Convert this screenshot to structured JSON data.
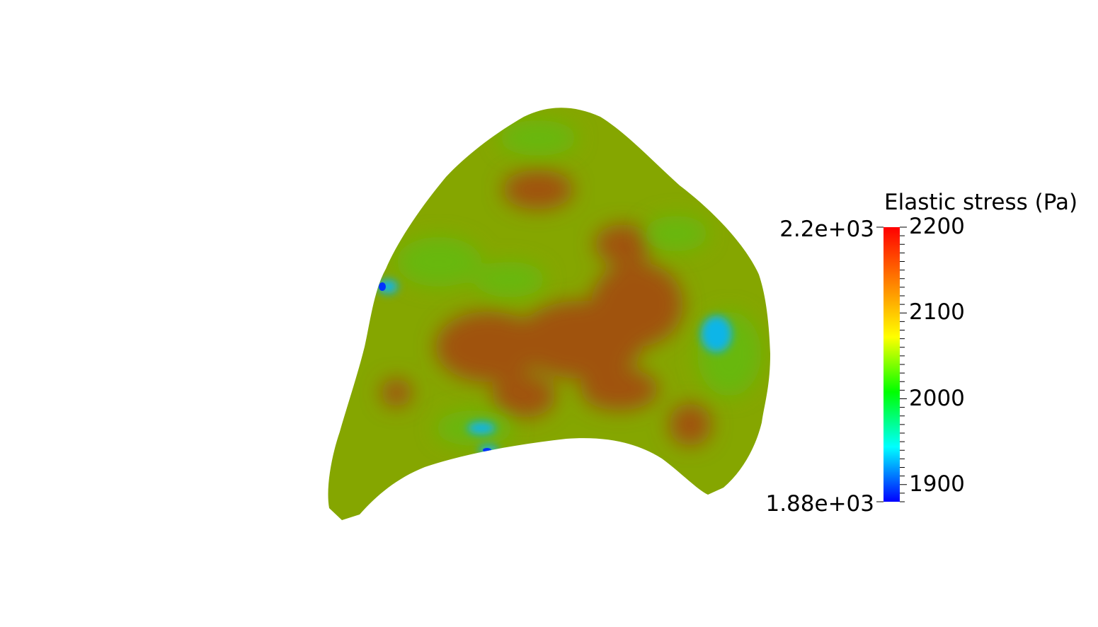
{
  "scalar_bar": {
    "title": "Elastic stress (Pa)",
    "range_max_label": "2.2e+03",
    "range_min_label": "1.88e+03",
    "range": [
      1880,
      2200
    ],
    "ticks": [
      {
        "value": 2200,
        "label": "2200"
      },
      {
        "value": 2100,
        "label": "2100"
      },
      {
        "value": 2000,
        "label": "2000"
      },
      {
        "value": 1900,
        "label": "1900"
      }
    ],
    "colormap": [
      "#0000ff",
      "#00ffff",
      "#00ff00",
      "#ffff00",
      "#ff8000",
      "#ff0000"
    ]
  },
  "field": {
    "base_color": "#85a600",
    "high_color": "#a0520a",
    "mid_color": "#67b80e",
    "low_color": "#0fb5e8",
    "min_color": "#0033ff"
  }
}
